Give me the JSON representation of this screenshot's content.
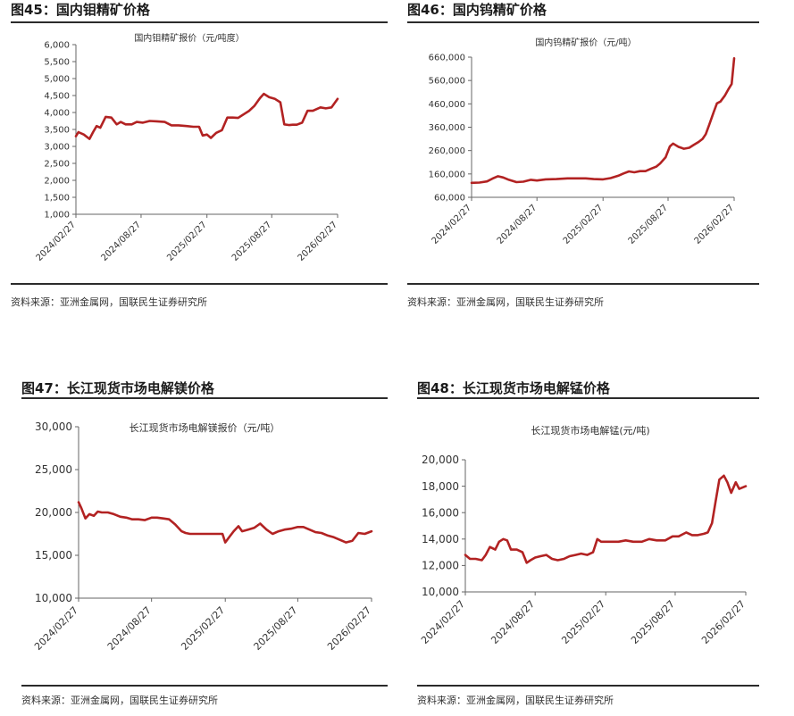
{
  "panels": [
    {
      "fig_title": "图45：国内钼精矿价格",
      "source": "资料来源：亚洲金属网，国联民生证券研究所"
    },
    {
      "fig_title": "图46：国内钨精矿价格",
      "source": "资料来源：亚洲金属网，国联民生证券研究所"
    },
    {
      "fig_title": "图47：长江现货市场电解镁价格",
      "source": "资料来源：亚洲金属网，国联民生证券研究所"
    },
    {
      "fig_title": "图48：长江现货市场电解锰价格",
      "source": "资料来源：亚洲金属网，国联民生证券研究所"
    }
  ],
  "chart_data": [
    {
      "type": "line",
      "title": "国内钼精矿报价（元/吨度）",
      "xlabel": "",
      "ylabel": "",
      "x_ticks": [
        "2024/02/27",
        "2024/08/27",
        "2025/02/27",
        "2025/08/27",
        "2026/02/27"
      ],
      "y_ticks": [
        "1,000",
        "1,500",
        "2,000",
        "2,500",
        "3,000",
        "3,500",
        "4,000",
        "4,500",
        "5,000",
        "5,500",
        "6,000"
      ],
      "ylim": [
        1000,
        6000
      ],
      "x_range": [
        "2024/02/27",
        "2026/02/27"
      ],
      "grid": false,
      "color": "#b22222",
      "series": [
        {
          "name": "",
          "x": [
            "2024/02/27",
            "2024/03/05",
            "2024/03/20",
            "2024/04/05",
            "2024/04/15",
            "2024/04/25",
            "2024/05/05",
            "2024/05/20",
            "2024/06/05",
            "2024/06/20",
            "2024/07/01",
            "2024/07/15",
            "2024/08/01",
            "2024/08/15",
            "2024/09/01",
            "2024/09/20",
            "2024/10/10",
            "2024/11/01",
            "2024/11/20",
            "2024/12/10",
            "2025/01/01",
            "2025/01/20",
            "2025/02/05",
            "2025/02/15",
            "2025/02/27",
            "2025/03/10",
            "2025/03/25",
            "2025/04/10",
            "2025/04/25",
            "2025/05/10",
            "2025/05/25",
            "2025/06/10",
            "2025/06/25",
            "2025/07/10",
            "2025/07/25",
            "2025/08/05",
            "2025/08/20",
            "2025/09/05",
            "2025/09/20",
            "2025/10/01",
            "2025/10/15",
            "2025/10/25",
            "2025/11/05",
            "2025/11/20",
            "2025/12/05",
            "2025/12/20",
            "2026/01/10",
            "2026/01/25",
            "2026/02/10",
            "2026/02/27"
          ],
          "values": [
            3300,
            3420,
            3350,
            3220,
            3420,
            3600,
            3550,
            3870,
            3850,
            3650,
            3720,
            3650,
            3650,
            3720,
            3700,
            3750,
            3740,
            3720,
            3620,
            3620,
            3600,
            3580,
            3580,
            3320,
            3350,
            3250,
            3400,
            3480,
            3850,
            3850,
            3840,
            3950,
            4050,
            4200,
            4420,
            4550,
            4450,
            4400,
            4300,
            3650,
            3630,
            3640,
            3640,
            3700,
            4050,
            4050,
            4150,
            4120,
            4150,
            4400
          ]
        }
      ]
    },
    {
      "type": "line",
      "title": "国内钨精矿报价（元/吨）",
      "xlabel": "",
      "ylabel": "",
      "x_ticks": [
        "2024/02/27",
        "2024/08/27",
        "2025/02/27",
        "2025/08/27",
        "2026/02/27"
      ],
      "y_ticks": [
        "60,000",
        "160,000",
        "260,000",
        "360,000",
        "460,000",
        "560,000",
        "660,000"
      ],
      "ylim": [
        60000,
        660000
      ],
      "x_range": [
        "2024/02/27",
        "2026/02/27"
      ],
      "grid": false,
      "color": "#b22222",
      "series": [
        {
          "name": "",
          "x": [
            "2024/02/27",
            "2024/03/20",
            "2024/04/10",
            "2024/04/25",
            "2024/05/10",
            "2024/05/25",
            "2024/06/10",
            "2024/07/01",
            "2024/07/20",
            "2024/08/10",
            "2024/08/27",
            "2024/09/20",
            "2024/10/20",
            "2024/11/20",
            "2024/12/20",
            "2025/01/10",
            "2025/02/01",
            "2025/02/27",
            "2025/03/20",
            "2025/04/10",
            "2025/04/25",
            "2025/05/10",
            "2025/05/25",
            "2025/06/10",
            "2025/06/25",
            "2025/07/10",
            "2025/07/25",
            "2025/08/05",
            "2025/08/20",
            "2025/09/01",
            "2025/09/10",
            "2025/09/25",
            "2025/10/10",
            "2025/10/25",
            "2025/11/05",
            "2025/11/20",
            "2025/12/01",
            "2025/12/10",
            "2025/12/20",
            "2026/01/01",
            "2026/01/10",
            "2026/01/20",
            "2026/02/01",
            "2026/02/10",
            "2026/02/20",
            "2026/02/27"
          ],
          "values": [
            122000,
            123000,
            128000,
            140000,
            150000,
            145000,
            135000,
            125000,
            127000,
            135000,
            132000,
            137000,
            138000,
            141000,
            141000,
            141000,
            138000,
            137000,
            142000,
            152000,
            162000,
            171000,
            167000,
            172000,
            172000,
            182000,
            191000,
            205000,
            231000,
            278000,
            290000,
            276000,
            268000,
            272000,
            283000,
            297000,
            310000,
            330000,
            372000,
            425000,
            462000,
            470000,
            495000,
            520000,
            545000,
            655000
          ]
        }
      ]
    },
    {
      "type": "line",
      "title": "长江现货市场电解镁报价（元/吨）",
      "xlabel": "",
      "ylabel": "",
      "x_ticks": [
        "2024/02/27",
        "2024/08/27",
        "2025/02/27",
        "2025/08/27",
        "2026/02/27"
      ],
      "y_ticks": [
        "10,000",
        "15,000",
        "20,000",
        "25,000",
        "30,000"
      ],
      "ylim": [
        10000,
        30000
      ],
      "x_range": [
        "2024/02/27",
        "2026/02/27"
      ],
      "grid": false,
      "color": "#b22222",
      "series": [
        {
          "name": "",
          "x": [
            "2024/02/27",
            "2024/03/05",
            "2024/03/15",
            "2024/03/25",
            "2024/04/05",
            "2024/04/15",
            "2024/04/25",
            "2024/05/10",
            "2024/05/25",
            "2024/06/10",
            "2024/06/25",
            "2024/07/10",
            "2024/07/25",
            "2024/08/10",
            "2024/08/27",
            "2024/09/10",
            "2024/09/25",
            "2024/10/10",
            "2024/10/25",
            "2024/11/10",
            "2024/11/20",
            "2024/12/01",
            "2024/12/20",
            "2025/01/10",
            "2025/02/01",
            "2025/02/20",
            "2025/02/27",
            "2025/03/10",
            "2025/03/20",
            "2025/04/01",
            "2025/04/10",
            "2025/04/25",
            "2025/05/10",
            "2025/05/25",
            "2025/06/10",
            "2025/06/25",
            "2025/07/10",
            "2025/07/25",
            "2025/08/10",
            "2025/08/27",
            "2025/09/10",
            "2025/09/25",
            "2025/10/10",
            "2025/10/25",
            "2025/11/10",
            "2025/11/25",
            "2025/12/10",
            "2025/12/25",
            "2026/01/10",
            "2026/01/25",
            "2026/02/10",
            "2026/02/27"
          ],
          "values": [
            21200,
            20500,
            19300,
            19800,
            19600,
            20100,
            20000,
            20000,
            19800,
            19500,
            19400,
            19200,
            19200,
            19100,
            19400,
            19400,
            19300,
            19200,
            18600,
            17800,
            17600,
            17500,
            17500,
            17500,
            17500,
            17500,
            16500,
            17200,
            17800,
            18400,
            17800,
            18000,
            18200,
            18700,
            18000,
            17500,
            17800,
            18000,
            18100,
            18300,
            18300,
            18000,
            17700,
            17600,
            17300,
            17100,
            16800,
            16500,
            16700,
            17600,
            17500,
            17800
          ]
        }
      ]
    },
    {
      "type": "line",
      "title": "长江现货市场电解锰(元/吨)",
      "xlabel": "",
      "ylabel": "",
      "x_ticks": [
        "2024/02/27",
        "2024/08/27",
        "2025/02/27",
        "2025/08/27",
        "2026/02/27"
      ],
      "y_ticks": [
        "10,000",
        "12,000",
        "14,000",
        "16,000",
        "18,000",
        "20,000"
      ],
      "ylim": [
        10000,
        20000
      ],
      "x_range": [
        "2024/02/27",
        "2026/02/27"
      ],
      "grid": false,
      "color": "#b22222",
      "series": [
        {
          "name": "",
          "x": [
            "2024/02/27",
            "2024/03/10",
            "2024/03/25",
            "2024/04/10",
            "2024/04/20",
            "2024/05/01",
            "2024/05/15",
            "2024/05/25",
            "2024/06/05",
            "2024/06/15",
            "2024/06/25",
            "2024/07/10",
            "2024/07/25",
            "2024/08/05",
            "2024/08/15",
            "2024/08/27",
            "2024/09/10",
            "2024/09/25",
            "2024/10/10",
            "2024/10/25",
            "2024/11/10",
            "2024/11/25",
            "2024/12/10",
            "2024/12/25",
            "2025/01/10",
            "2025/01/25",
            "2025/02/05",
            "2025/02/15",
            "2025/02/27",
            "2025/03/15",
            "2025/04/01",
            "2025/04/20",
            "2025/05/10",
            "2025/06/01",
            "2025/06/20",
            "2025/07/10",
            "2025/08/01",
            "2025/08/20",
            "2025/09/05",
            "2025/09/25",
            "2025/10/10",
            "2025/10/25",
            "2025/11/10",
            "2025/11/20",
            "2025/12/01",
            "2025/12/10",
            "2025/12/20",
            "2026/01/01",
            "2026/01/10",
            "2026/01/20",
            "2026/02/01",
            "2026/02/10",
            "2026/02/27"
          ],
          "values": [
            12800,
            12500,
            12500,
            12400,
            12800,
            13400,
            13200,
            13800,
            14000,
            13900,
            13200,
            13200,
            13000,
            12200,
            12400,
            12600,
            12700,
            12800,
            12500,
            12400,
            12500,
            12700,
            12800,
            12900,
            12800,
            13000,
            14000,
            13800,
            13800,
            13800,
            13800,
            13900,
            13800,
            13800,
            14000,
            13900,
            13900,
            14200,
            14200,
            14500,
            14300,
            14300,
            14400,
            14500,
            15200,
            16800,
            18500,
            18800,
            18300,
            17500,
            18300,
            17800,
            18000
          ]
        }
      ]
    }
  ]
}
